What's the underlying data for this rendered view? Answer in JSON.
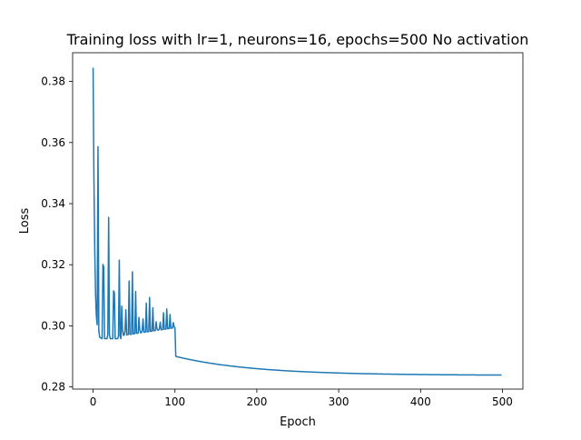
{
  "chart_data": {
    "type": "line",
    "title": "Training loss with lr=1, neurons=16, epochs=500 No activation",
    "xlabel": "Epoch",
    "ylabel": "Loss",
    "xlim": [
      -25,
      525
    ],
    "ylim": [
      0.2793,
      0.3894
    ],
    "xticks": [
      0,
      100,
      200,
      300,
      400,
      500
    ],
    "yticks": [
      0.28,
      0.3,
      0.32,
      0.34,
      0.36,
      0.38
    ],
    "ytick_labels": [
      "0.28",
      "0.30",
      "0.32",
      "0.34",
      "0.36",
      "0.38"
    ],
    "grid": false,
    "legend": "none",
    "series": [
      {
        "color": "#1f77b4",
        "x_start": 0,
        "x_end": 499,
        "values_sampled_every": 1,
        "approx_key_points": [
          [
            0,
            0.3845
          ],
          [
            1,
            0.331
          ],
          [
            3,
            0.31
          ],
          [
            5,
            0.3015
          ],
          [
            6,
            0.3
          ],
          [
            10,
            0.3475
          ],
          [
            13,
            0.296
          ],
          [
            17,
            0.3415
          ],
          [
            21,
            0.2955
          ],
          [
            25,
            0.3355
          ],
          [
            29,
            0.2957
          ],
          [
            30,
            0.329
          ],
          [
            40,
            0.3185
          ],
          [
            45,
            0.32
          ],
          [
            50,
            0.316
          ],
          [
            60,
            0.3125
          ],
          [
            70,
            0.309
          ],
          [
            80,
            0.304
          ],
          [
            90,
            0.3015
          ],
          [
            100,
            0.2995
          ],
          [
            150,
            0.2935
          ],
          [
            200,
            0.2897
          ],
          [
            250,
            0.2877
          ],
          [
            300,
            0.2864
          ],
          [
            350,
            0.2855
          ],
          [
            400,
            0.2849
          ],
          [
            450,
            0.2844
          ],
          [
            499,
            0.284
          ]
        ]
      }
    ]
  }
}
